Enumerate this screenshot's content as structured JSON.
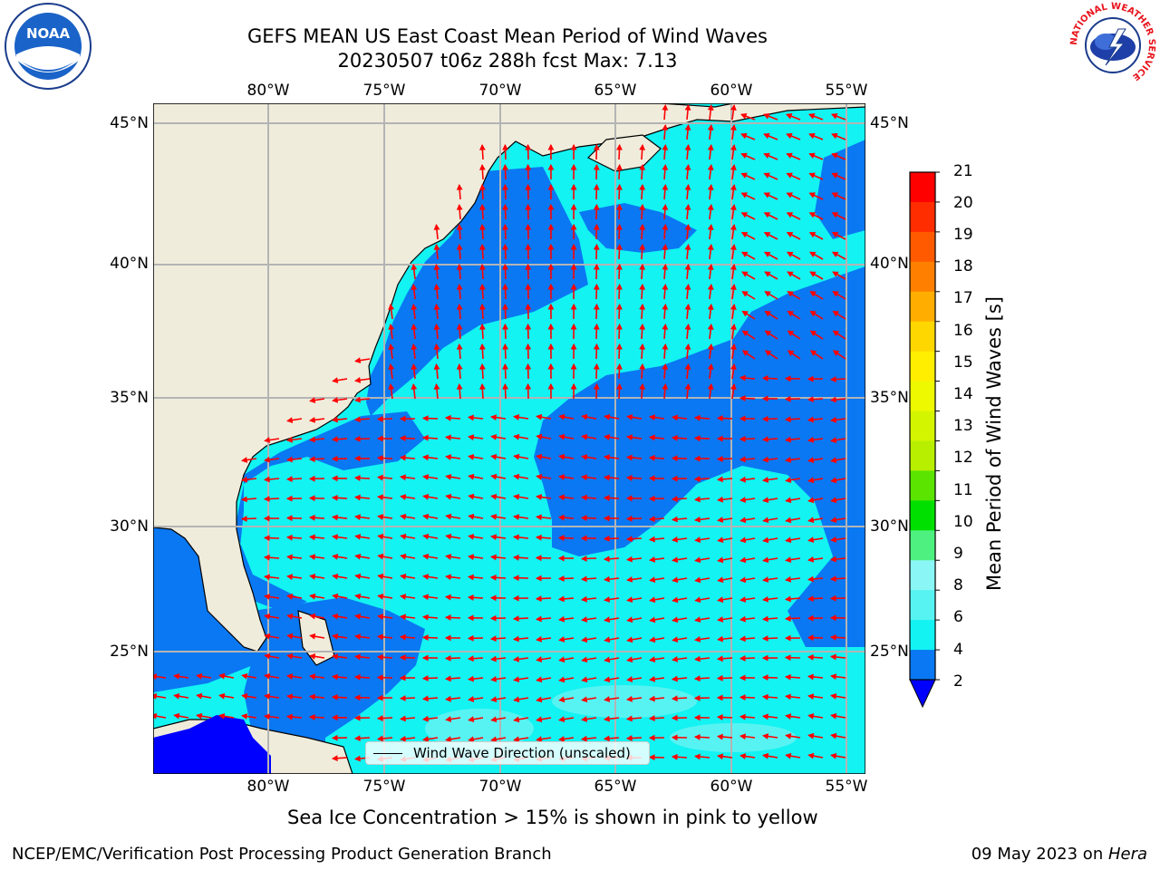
{
  "header": {
    "title_line1": "GEFS MEAN US East Coast Mean Period of Wind Waves",
    "title_line2": "20230507 t06z 288h fcst   Max: 7.13"
  },
  "map": {
    "lon_labels": [
      "80°W",
      "75°W",
      "70°W",
      "65°W",
      "60°W",
      "55°W"
    ],
    "lat_labels": [
      "45°N",
      "40°N",
      "35°N",
      "30°N",
      "25°N"
    ],
    "colors": {
      "land": "#efecdc",
      "ocean_dark": "#0a78f2",
      "ocean_light": "#12f3f2",
      "ocean_pale": "#57f3f2",
      "deep_blue": "#0000ff",
      "arrow": "#ff0000",
      "grid": "#b4b4b4"
    }
  },
  "legend": {
    "label": "Wind Wave Direction (unscaled)"
  },
  "colorbar": {
    "label": "Mean Period of Wind Waves [s]",
    "ticks": [
      "21",
      "20",
      "19",
      "18",
      "17",
      "16",
      "15",
      "14",
      "13",
      "12",
      "11",
      "10",
      "9",
      "8",
      "6",
      "4",
      "2"
    ],
    "colors_top_to_bottom": [
      "#ff0000",
      "#ff2d00",
      "#ff5a00",
      "#ff8000",
      "#ffae00",
      "#ffd700",
      "#ffee00",
      "#eef900",
      "#d4f500",
      "#b8ef00",
      "#5ae400",
      "#00e000",
      "#4ef080",
      "#8af7f6",
      "#57f3f2",
      "#12f3f2",
      "#0a78f2"
    ],
    "under_color": "#0000ff"
  },
  "note": "Sea Ice Concentration > 15% is shown in pink to yellow",
  "footer": {
    "left": "NCEP/EMC/Verification Post Processing Product Generation Branch",
    "right_date": "09 May 2023 on ",
    "right_machine": "Hera"
  },
  "logos": {
    "left": "NOAA",
    "right": "NATIONAL WEATHER SERVICE"
  }
}
